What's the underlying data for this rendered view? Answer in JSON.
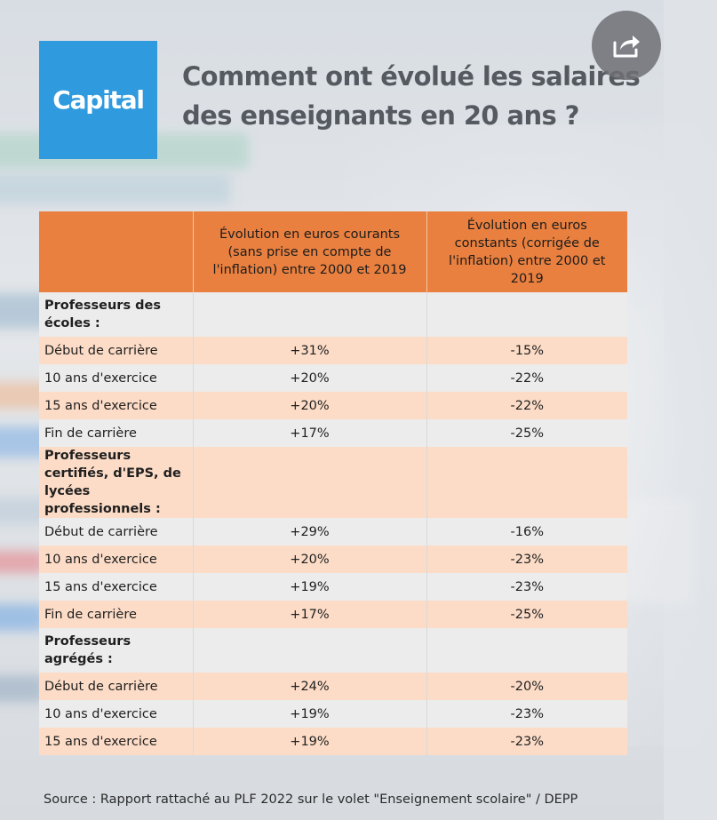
{
  "logo": {
    "text": "Capital"
  },
  "title": "Comment ont évolué les salaires des enseignants en 20 ans ?",
  "share_button": {
    "icon": "share-icon"
  },
  "table": {
    "headers": [
      "",
      "Évolution en euros courants (sans prise en compte de l'inflation) entre 2000 et 2019",
      "Évolution en euros constants (corrigée de l'inflation) entre 2000 et 2019"
    ],
    "rows": [
      {
        "kind": "section",
        "label": "Professeurs des écoles :",
        "current": "",
        "constant": ""
      },
      {
        "kind": "data",
        "label": "Début de carrière",
        "current": "+31%",
        "constant": "-15%"
      },
      {
        "kind": "data",
        "label": "10 ans d'exercice",
        "current": "+20%",
        "constant": "-22%"
      },
      {
        "kind": "data",
        "label": "15 ans d'exercice",
        "current": "+20%",
        "constant": "-22%"
      },
      {
        "kind": "data",
        "label": "Fin de carrière",
        "current": "+17%",
        "constant": "-25%"
      },
      {
        "kind": "section3",
        "label": "Professeurs certifiés, d'EPS, de lycées professionnels :",
        "current": "",
        "constant": ""
      },
      {
        "kind": "data",
        "label": "Début de carrière",
        "current": "+29%",
        "constant": "-16%"
      },
      {
        "kind": "data",
        "label": "10 ans d'exercice",
        "current": "+20%",
        "constant": "-23%"
      },
      {
        "kind": "data",
        "label": "15 ans d'exercice",
        "current": "+19%",
        "constant": "-23%"
      },
      {
        "kind": "data",
        "label": "Fin de carrière",
        "current": "+17%",
        "constant": "-25%"
      },
      {
        "kind": "section",
        "label": "Professeurs agrégés :",
        "current": "",
        "constant": ""
      },
      {
        "kind": "data",
        "label": "Début de carrière",
        "current": "+24%",
        "constant": "-20%"
      },
      {
        "kind": "data",
        "label": "10 ans d'exercice",
        "current": "+19%",
        "constant": "-23%"
      },
      {
        "kind": "data",
        "label": "15 ans d'exercice",
        "current": "+19%",
        "constant": "-23%"
      }
    ]
  },
  "source": "Source : Rapport rattaché au PLF 2022 sur le volet \"Enseignement scolaire\" /  DEPP",
  "colors": {
    "header_orange": "#e9803f",
    "row_peach": "#fcdcc7",
    "row_grey": "#ececec",
    "logo_blue": "#2f9ade",
    "title_grey": "#545a60"
  }
}
